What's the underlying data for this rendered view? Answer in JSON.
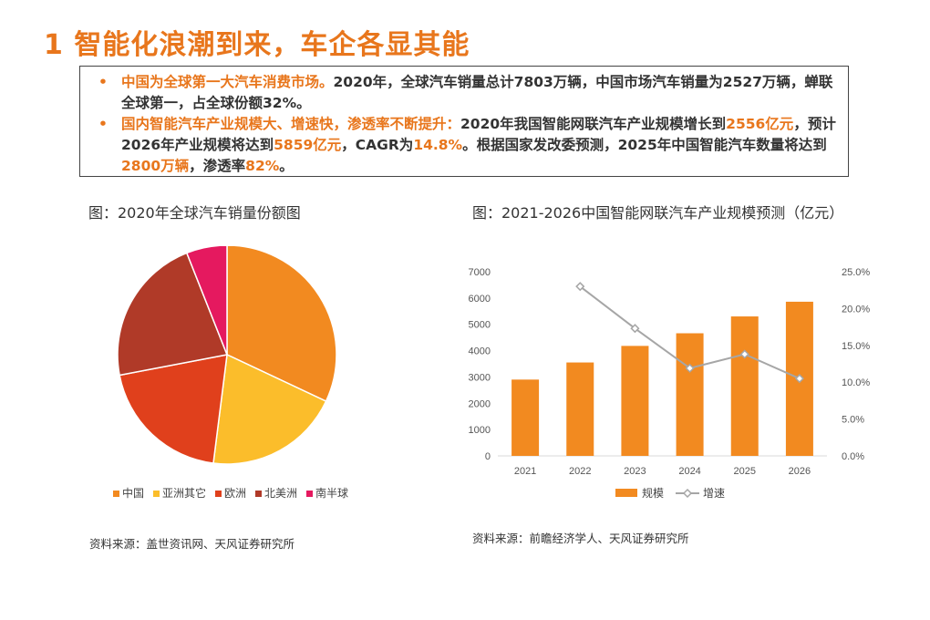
{
  "page": {
    "title": "1 智能化浪潮到来，车企各显其能",
    "bullets": [
      {
        "marker": "•",
        "parts": [
          {
            "text": "中国为全球第一大汽车消费市场。",
            "hl": true
          },
          {
            "text": "2020年，全球汽车销量总计7803万辆，中国市场汽车销量为2527万辆，蝉联全球第一，占全球份额32%。",
            "hl": false
          }
        ]
      },
      {
        "marker": "•",
        "parts": [
          {
            "text": "国内智能汽车产业规模大、增速快，渗透率不断提升：",
            "hl": true
          },
          {
            "text": "2020年我国智能网联汽车产业规模增长到",
            "hl": false
          },
          {
            "text": "2556亿元",
            "hl": true
          },
          {
            "text": "，预计2026年产业规模将达到",
            "hl": false
          },
          {
            "text": "5859亿元",
            "hl": true
          },
          {
            "text": "，CAGR为",
            "hl": false
          },
          {
            "text": "14.8%",
            "hl": true
          },
          {
            "text": "。根据国家发改委预测，2025年中国智能汽车数量将达到",
            "hl": false
          },
          {
            "text": "2800万辆",
            "hl": true
          },
          {
            "text": "，渗透率",
            "hl": false
          },
          {
            "text": "82%",
            "hl": true
          },
          {
            "text": "。",
            "hl": false
          }
        ]
      }
    ],
    "left_figure_title": "图：2020年全球汽车销量份额图",
    "right_figure_title": "图：2021-2026中国智能网联汽车产业规模预测（亿元）",
    "left_source": "资料来源：盖世资讯网、天风证券研究所",
    "right_source": "资料来源：前瞻经济学人、天风证券研究所"
  },
  "chart_data": [
    {
      "type": "pie",
      "labels": [
        "中国",
        "亚洲其它",
        "欧洲",
        "北美洲",
        "南半球"
      ],
      "values": [
        32,
        20,
        20,
        22,
        6
      ],
      "colors": [
        "#f28a20",
        "#fbbd2b",
        "#e0401c",
        "#b03a28",
        "#e5195f"
      ],
      "legend_position": "bottom"
    },
    {
      "type": "bar",
      "categories": [
        "2021",
        "2022",
        "2023",
        "2024",
        "2025",
        "2026"
      ],
      "series": [
        {
          "name": "规模",
          "type": "bar",
          "axis": "left",
          "color": "#f28a20",
          "values": [
            2900,
            3550,
            4180,
            4660,
            5300,
            5859
          ]
        },
        {
          "name": "增速",
          "type": "line",
          "axis": "right",
          "color": "#a6a6a6",
          "values": [
            null,
            23.0,
            17.3,
            11.9,
            13.8,
            10.5
          ]
        }
      ],
      "y_left": {
        "min": 0,
        "max": 7000,
        "ticks": [
          "0",
          "1000",
          "2000",
          "3000",
          "4000",
          "5000",
          "6000",
          "7000"
        ]
      },
      "y_right": {
        "min": 0,
        "max": 25,
        "ticks": [
          "0.0%",
          "5.0%",
          "10.0%",
          "15.0%",
          "20.0%",
          "25.0%"
        ]
      },
      "grid": false,
      "legend_position": "bottom"
    }
  ]
}
